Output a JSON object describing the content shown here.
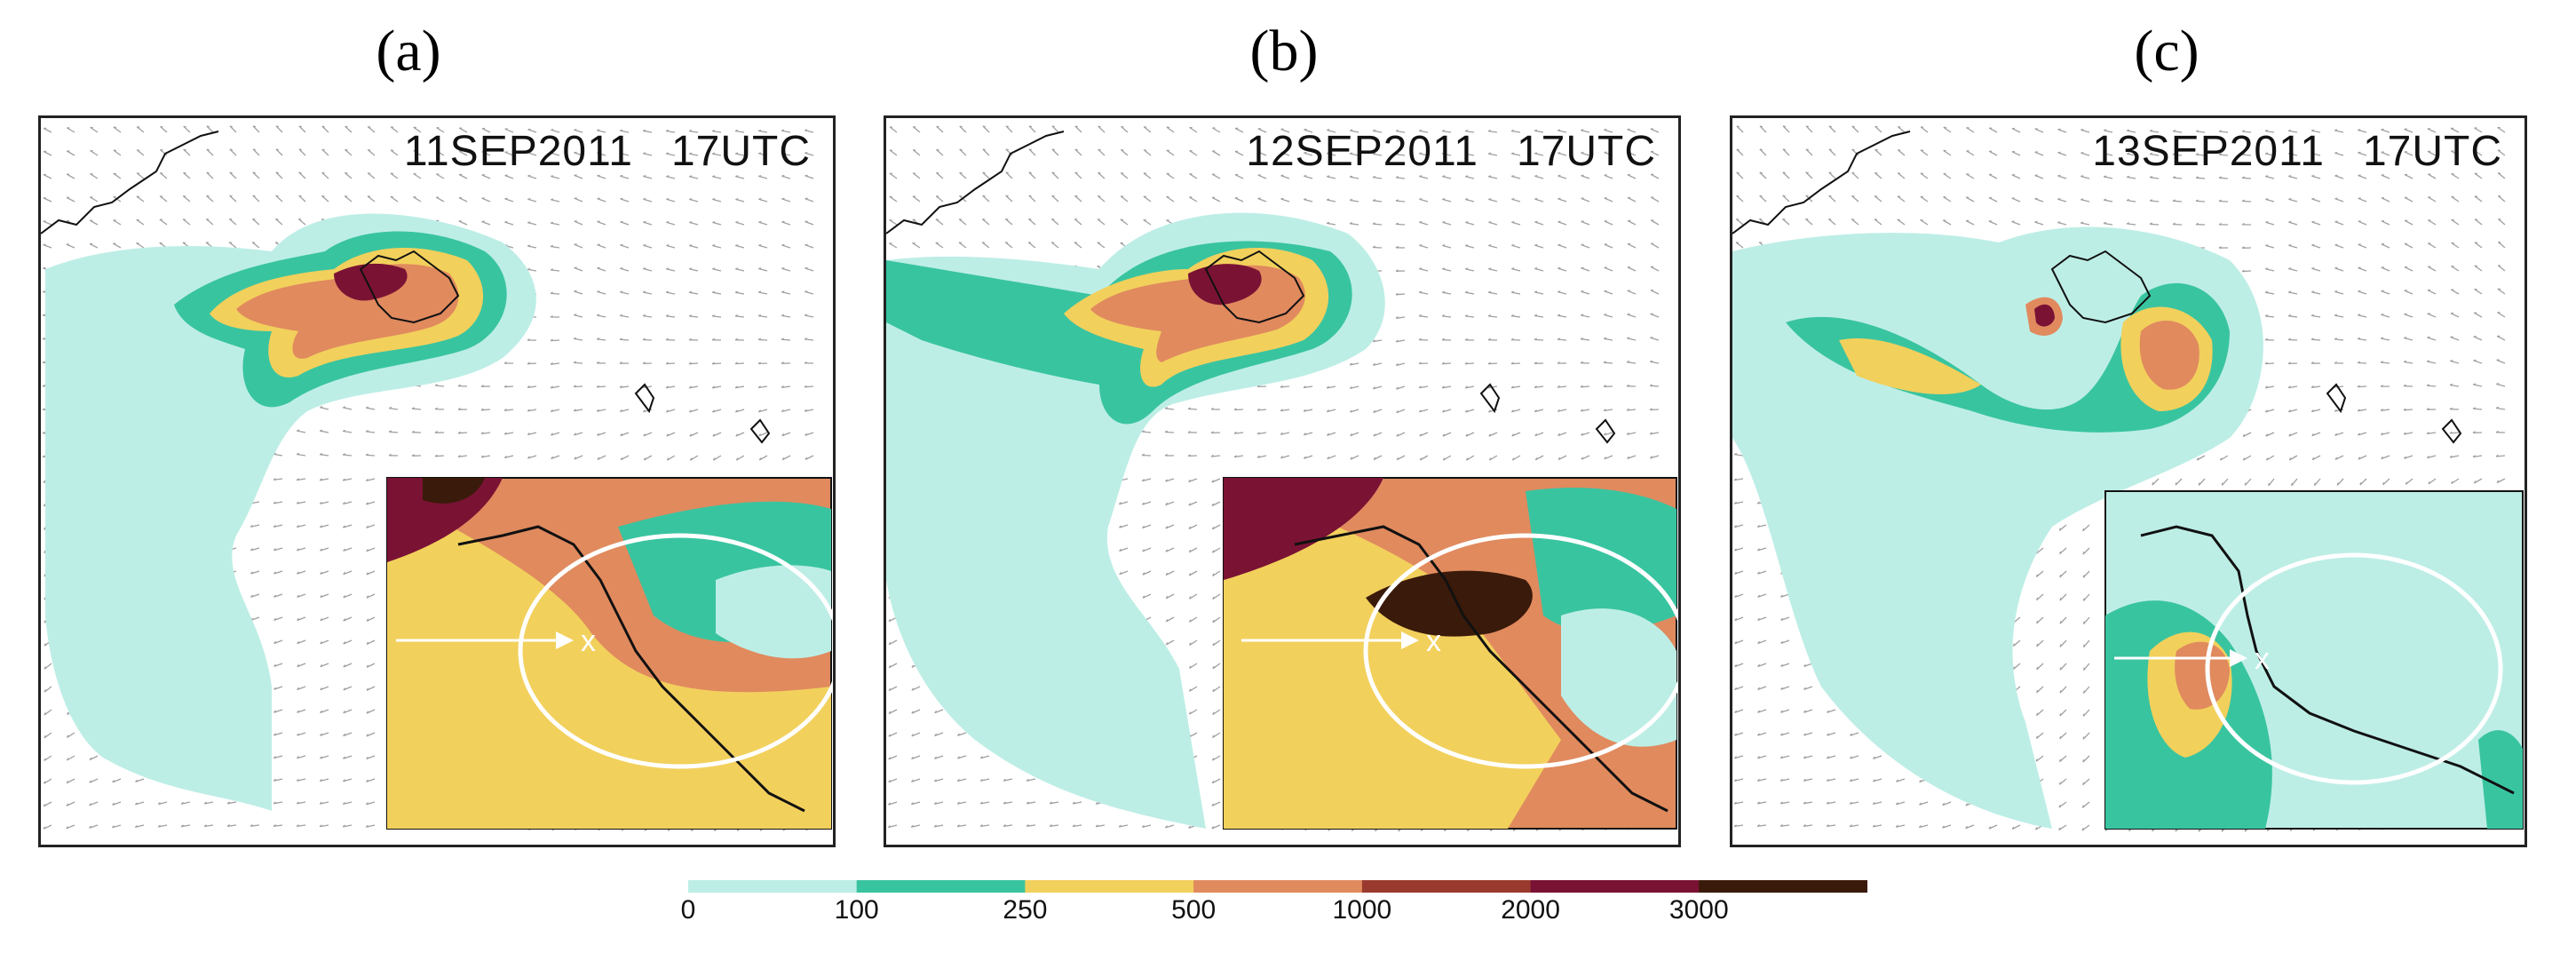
{
  "panels": [
    {
      "label": "(a)",
      "date": "11SEP2011",
      "time": "17UTC"
    },
    {
      "label": "(b)",
      "date": "12SEP2011",
      "time": "17UTC"
    },
    {
      "label": "(c)",
      "date": "13SEP2011",
      "time": "17UTC"
    }
  ],
  "inset_marker": "x",
  "colorbar": {
    "ticks": [
      "0",
      "100",
      "250",
      "500",
      "1000",
      "2000",
      "3000"
    ],
    "colors": [
      "#bdeee6",
      "#39c4a0",
      "#f2d05c",
      "#e08a5e",
      "#9a3a2e",
      "#7a1234",
      "#3a1a0a"
    ]
  },
  "palette": {
    "level1": "#bdeee6",
    "level2": "#39c4a0",
    "level3": "#f2d05c",
    "level4": "#e08a5e",
    "level5": "#a3432f",
    "level6": "#7a1234",
    "level7": "#3a1a0a",
    "arrow": "#a0a0a0",
    "coast": "#111111"
  }
}
